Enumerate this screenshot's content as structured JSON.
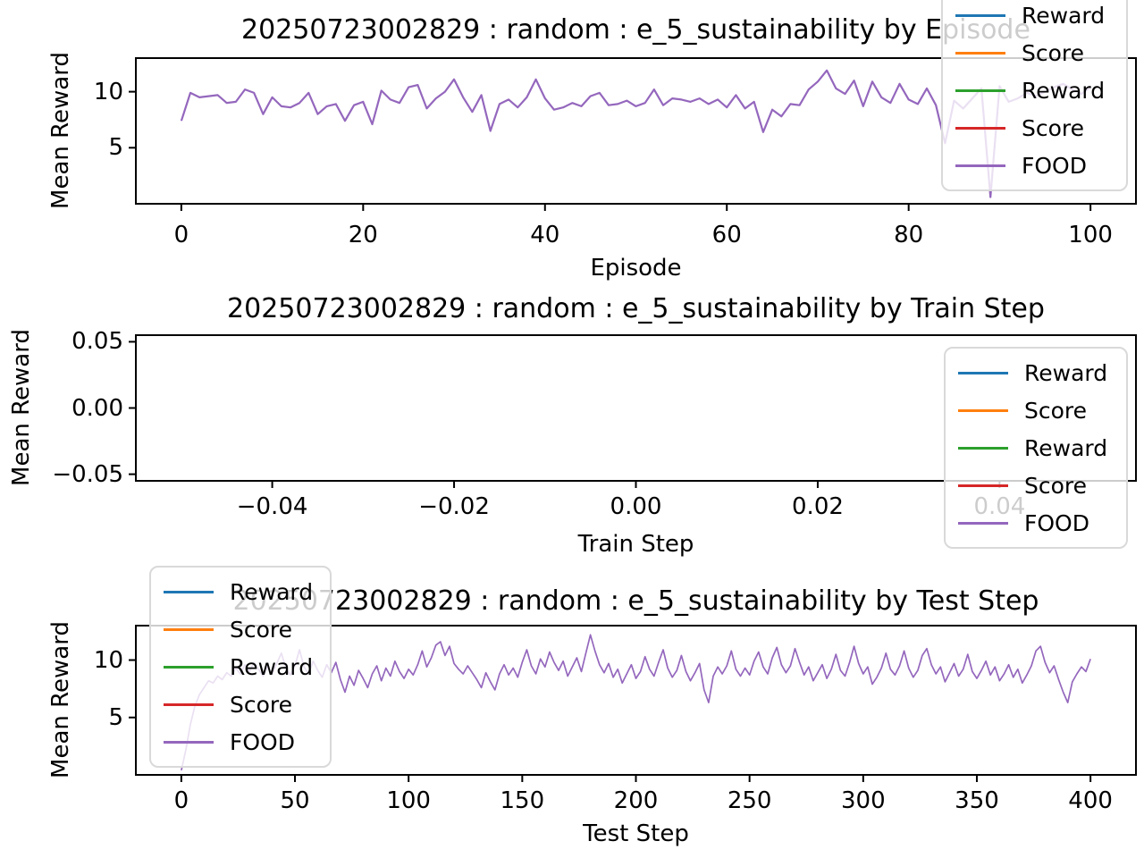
{
  "colors": {
    "axis": "#000000",
    "series_blue": "#1f77b4",
    "series_orange": "#ff7f0e",
    "series_green": "#2ca02c",
    "series_red": "#d62728",
    "series_purple": "#9467bd",
    "legend_border": "#d9d9d9",
    "background": "#ffffff"
  },
  "legend": {
    "entries": [
      {
        "label": "Reward",
        "color": "#1f77b4"
      },
      {
        "label": "Score",
        "color": "#ff7f0e"
      },
      {
        "label": "Reward",
        "color": "#2ca02c"
      },
      {
        "label": "Score",
        "color": "#d62728"
      },
      {
        "label": "FOOD",
        "color": "#9467bd"
      }
    ]
  },
  "chart_data": [
    {
      "type": "line",
      "title": "20250723002829 : random : e_5_sustainability by Episode",
      "xlabel": "Episode",
      "ylabel": "Mean Reward",
      "xlim": [
        -5,
        105
      ],
      "ylim": [
        0,
        13
      ],
      "grid": false,
      "legend_position": "upper-right",
      "xticks": [
        {
          "v": 0,
          "label": "0"
        },
        {
          "v": 20,
          "label": "20"
        },
        {
          "v": 40,
          "label": "40"
        },
        {
          "v": 60,
          "label": "60"
        },
        {
          "v": 80,
          "label": "80"
        },
        {
          "v": 100,
          "label": "100"
        }
      ],
      "yticks": [
        {
          "v": 5,
          "label": "5"
        },
        {
          "v": 10,
          "label": "10"
        }
      ],
      "series": [
        {
          "name": "FOOD",
          "color": "#9467bd",
          "x_start": 0,
          "x_step": 1,
          "values": [
            7.4,
            9.9,
            9.5,
            9.6,
            9.7,
            9.0,
            9.1,
            10.2,
            9.9,
            8.0,
            9.5,
            8.7,
            8.6,
            9.0,
            9.9,
            8.0,
            8.7,
            8.9,
            7.4,
            8.8,
            9.1,
            7.1,
            10.1,
            9.3,
            9.0,
            10.4,
            10.6,
            8.5,
            9.4,
            10.0,
            11.1,
            9.5,
            8.2,
            9.7,
            6.5,
            8.9,
            9.3,
            8.6,
            9.5,
            11.1,
            9.4,
            8.4,
            8.6,
            9.0,
            8.7,
            9.6,
            9.9,
            8.8,
            8.9,
            9.2,
            8.7,
            9.0,
            10.2,
            8.8,
            9.4,
            9.3,
            9.1,
            9.4,
            8.9,
            9.3,
            8.6,
            9.7,
            8.5,
            9.1,
            6.4,
            8.4,
            7.8,
            8.9,
            8.8,
            10.2,
            10.9,
            11.9,
            10.3,
            9.8,
            11.0,
            8.7,
            10.9,
            9.5,
            9.0,
            10.7,
            9.3,
            8.9,
            10.3,
            8.8,
            5.4,
            9.2,
            8.5,
            9.4,
            10.3,
            0.6,
            10.5,
            9.1,
            9.4,
            9.9,
            9.6,
            10.0,
            10.4,
            10.7,
            10.2,
            9.8,
            10.4
          ]
        }
      ]
    },
    {
      "type": "line",
      "title": "20250723002829 : random : e_5_sustainability by Train Step",
      "xlabel": "Train Step",
      "ylabel": "Mean Reward",
      "xlim": [
        -0.055,
        0.055
      ],
      "ylim": [
        -0.055,
        0.055
      ],
      "grid": false,
      "legend_position": "center-right",
      "xticks": [
        {
          "v": -0.04,
          "label": "−0.04"
        },
        {
          "v": -0.02,
          "label": "−0.02"
        },
        {
          "v": 0.0,
          "label": "0.00"
        },
        {
          "v": 0.02,
          "label": "0.02"
        },
        {
          "v": 0.04,
          "label": "0.04"
        }
      ],
      "yticks": [
        {
          "v": -0.05,
          "label": "−0.05"
        },
        {
          "v": 0.0,
          "label": "0.00"
        },
        {
          "v": 0.05,
          "label": "0.05"
        }
      ],
      "series": []
    },
    {
      "type": "line",
      "title": "20250723002829 : random : e_5_sustainability by Test Step",
      "xlabel": "Test Step",
      "ylabel": "Mean Reward",
      "xlim": [
        -20,
        420
      ],
      "ylim": [
        0,
        13
      ],
      "grid": false,
      "legend_position": "upper-left",
      "xticks": [
        {
          "v": 0,
          "label": "0"
        },
        {
          "v": 50,
          "label": "50"
        },
        {
          "v": 100,
          "label": "100"
        },
        {
          "v": 150,
          "label": "150"
        },
        {
          "v": 200,
          "label": "200"
        },
        {
          "v": 250,
          "label": "250"
        },
        {
          "v": 300,
          "label": "300"
        },
        {
          "v": 350,
          "label": "350"
        },
        {
          "v": 400,
          "label": "400"
        }
      ],
      "yticks": [
        {
          "v": 5,
          "label": "5"
        },
        {
          "v": 10,
          "label": "10"
        }
      ],
      "series": [
        {
          "name": "FOOD",
          "color": "#9467bd",
          "x_start": 0,
          "x_step": 2,
          "values": [
            0.4,
            2.2,
            4.4,
            6.0,
            7.0,
            7.6,
            8.2,
            8.0,
            8.6,
            8.3,
            8.9,
            8.6,
            9.3,
            8.8,
            9.6,
            9.0,
            9.8,
            9.2,
            8.6,
            9.4,
            8.8,
            9.7,
            10.6,
            9.3,
            8.7,
            9.5,
            10.9,
            9.4,
            8.8,
            9.9,
            9.1,
            8.5,
            9.6,
            8.9,
            9.8,
            8.3,
            7.2,
            8.6,
            7.8,
            9.1,
            8.4,
            7.6,
            8.8,
            9.5,
            8.2,
            9.3,
            8.6,
            9.9,
            9.0,
            8.4,
            9.2,
            8.7,
            9.6,
            10.8,
            9.4,
            10.2,
            11.3,
            11.6,
            10.4,
            11.2,
            9.7,
            9.2,
            8.8,
            9.5,
            8.9,
            8.3,
            7.6,
            8.9,
            8.1,
            7.4,
            8.8,
            9.6,
            8.7,
            9.3,
            8.5,
            9.8,
            10.9,
            9.5,
            8.8,
            10.1,
            9.4,
            10.7,
            9.8,
            9.1,
            9.9,
            8.6,
            9.4,
            10.2,
            9.0,
            10.6,
            12.2,
            10.8,
            9.6,
            8.9,
            9.7,
            8.5,
            9.2,
            8.0,
            8.8,
            9.6,
            8.4,
            9.0,
            10.3,
            9.2,
            8.6,
            9.8,
            10.9,
            9.3,
            8.5,
            9.1,
            10.4,
            9.0,
            8.2,
            8.9,
            9.7,
            7.4,
            6.3,
            8.6,
            9.4,
            8.8,
            9.5,
            10.8,
            9.2,
            8.6,
            9.3,
            8.7,
            9.9,
            10.7,
            9.4,
            8.8,
            10.2,
            11.1,
            9.6,
            8.9,
            9.5,
            11.0,
            9.8,
            8.7,
            9.4,
            8.2,
            8.9,
            9.6,
            8.4,
            9.2,
            10.5,
            9.1,
            8.6,
            9.8,
            11.2,
            9.7,
            8.8,
            9.4,
            7.9,
            8.5,
            9.3,
            10.6,
            9.2,
            8.7,
            9.5,
            10.8,
            9.3,
            8.5,
            9.1,
            10.4,
            11.0,
            9.6,
            8.8,
            9.4,
            8.1,
            8.9,
            9.7,
            8.6,
            9.2,
            10.5,
            9.0,
            8.4,
            9.1,
            9.9,
            8.7,
            9.4,
            8.2,
            8.8,
            9.6,
            8.5,
            9.2,
            8.0,
            8.7,
            9.5,
            10.8,
            11.2,
            9.8,
            8.9,
            9.5,
            8.3,
            7.2,
            6.3,
            8.1,
            8.8,
            9.4,
            9.0,
            10.1
          ]
        }
      ]
    }
  ]
}
